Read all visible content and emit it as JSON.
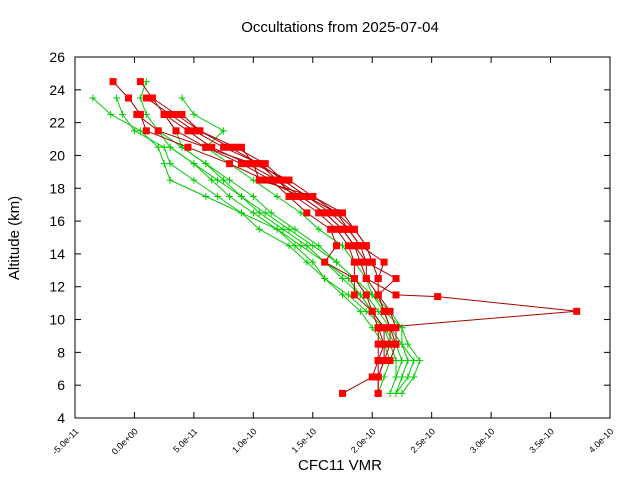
{
  "chart_data": {
    "type": "line",
    "title": "Occultations from 2025-07-04",
    "xlabel": "CFC11 VMR",
    "ylabel": "Altitude (km)",
    "xlim": [
      -5e-11,
      4e-10
    ],
    "ylim": [
      4,
      26
    ],
    "x_ticks": [
      "-5.0e-11",
      "0.0e+00",
      "5.0e-11",
      "1.0e-10",
      "1.5e-10",
      "2.0e-10",
      "2.5e-10",
      "3.0e-10",
      "3.5e-10",
      "4.0e-10"
    ],
    "x_tick_values": [
      -5e-11,
      0,
      5e-11,
      1e-10,
      1.5e-10,
      2e-10,
      2.5e-10,
      3e-10,
      3.5e-10,
      4e-10
    ],
    "y_ticks": [
      "4",
      "6",
      "8",
      "10",
      "12",
      "14",
      "16",
      "18",
      "20",
      "22",
      "24",
      "26"
    ],
    "y_tick_values": [
      4,
      6,
      8,
      10,
      12,
      14,
      16,
      18,
      20,
      22,
      24,
      26
    ],
    "grid": false,
    "colors": {
      "green": "#00cc00",
      "red": "#ff0000",
      "red_line": "#aa0000",
      "axis": "#000000"
    },
    "series": [
      {
        "marker": "plus",
        "color": "#00cc00",
        "points": [
          [
            -3.5e-11,
            23.5
          ],
          [
            -2e-11,
            22.5
          ],
          [
            5e-12,
            21.5
          ],
          [
            2e-11,
            20.5
          ],
          [
            2.5e-11,
            19.5
          ],
          [
            3e-11,
            18.5
          ],
          [
            6e-11,
            17.5
          ],
          [
            9e-11,
            16.5
          ],
          [
            1.2e-10,
            15.5
          ],
          [
            1.35e-10,
            14.5
          ],
          [
            1.5e-10,
            13.5
          ],
          [
            1.6e-10,
            12.5
          ],
          [
            1.8e-10,
            11.5
          ],
          [
            1.95e-10,
            10.5
          ],
          [
            2.1e-10,
            9.5
          ],
          [
            2.15e-10,
            8.5
          ],
          [
            2.2e-10,
            7.5
          ],
          [
            2.2e-10,
            6.5
          ],
          [
            2.15e-10,
            5.5
          ]
        ]
      },
      {
        "marker": "plus",
        "color": "#00cc00",
        "points": [
          [
            -1.5e-11,
            23.5
          ],
          [
            -1e-11,
            22.5
          ],
          [
            0,
            21.5
          ],
          [
            2.5e-11,
            20.5
          ],
          [
            3e-11,
            19.5
          ],
          [
            5e-11,
            18.5
          ],
          [
            7e-11,
            17.5
          ],
          [
            9e-11,
            16.5
          ],
          [
            1.05e-10,
            15.5
          ],
          [
            1.3e-10,
            14.5
          ],
          [
            1.45e-10,
            13.5
          ],
          [
            1.6e-10,
            12.5
          ],
          [
            1.75e-10,
            11.5
          ],
          [
            1.9e-10,
            10.5
          ],
          [
            2e-10,
            9.5
          ],
          [
            2.1e-10,
            8.5
          ],
          [
            2.15e-10,
            7.5
          ],
          [
            2.1e-10,
            6.5
          ],
          [
            2.05e-10,
            5.5
          ]
        ]
      },
      {
        "marker": "plus",
        "color": "#00cc00",
        "points": [
          [
            1e-11,
            24.5
          ],
          [
            5e-12,
            23.5
          ],
          [
            1e-11,
            22.5
          ],
          [
            2e-11,
            21.5
          ],
          [
            4e-11,
            20.5
          ],
          [
            6e-11,
            19.5
          ],
          [
            8e-11,
            18.5
          ],
          [
            1e-10,
            17.5
          ],
          [
            1.15e-10,
            16.5
          ],
          [
            1.35e-10,
            15.5
          ],
          [
            1.55e-10,
            14.5
          ],
          [
            1.7e-10,
            13.5
          ],
          [
            1.85e-10,
            12.5
          ],
          [
            1.95e-10,
            11.5
          ],
          [
            2.05e-10,
            10.5
          ],
          [
            2.15e-10,
            9.5
          ],
          [
            2.25e-10,
            8.5
          ],
          [
            2.35e-10,
            7.5
          ],
          [
            2.3e-10,
            6.5
          ],
          [
            2.2e-10,
            5.5
          ]
        ]
      },
      {
        "marker": "plus",
        "color": "#00cc00",
        "points": [
          [
            4e-11,
            23.5
          ],
          [
            5e-11,
            22.5
          ],
          [
            7.5e-11,
            21.5
          ],
          [
            6e-11,
            20.5
          ],
          [
            8e-11,
            19.5
          ],
          [
            1e-10,
            18.5
          ],
          [
            1.2e-10,
            17.5
          ],
          [
            1.4e-10,
            16.5
          ],
          [
            1.55e-10,
            15.5
          ],
          [
            1.75e-10,
            14.5
          ],
          [
            1.85e-10,
            13.5
          ],
          [
            1.95e-10,
            12.5
          ],
          [
            2e-10,
            11.5
          ],
          [
            2.1e-10,
            10.5
          ],
          [
            2.25e-10,
            9.5
          ],
          [
            2.25e-10,
            8.5
          ],
          [
            2.3e-10,
            7.5
          ],
          [
            2.25e-10,
            6.5
          ],
          [
            2.2e-10,
            5.5
          ]
        ]
      },
      {
        "marker": "plus",
        "color": "#00cc00",
        "points": [
          [
            2.5e-11,
            22.5
          ],
          [
            3.5e-11,
            21.5
          ],
          [
            4e-11,
            20.5
          ],
          [
            6e-11,
            19.5
          ],
          [
            7.5e-11,
            18.5
          ],
          [
            9e-11,
            17.5
          ],
          [
            1.1e-10,
            16.5
          ],
          [
            1.3e-10,
            15.5
          ],
          [
            1.5e-10,
            14.5
          ],
          [
            1.7e-10,
            13.5
          ],
          [
            1.85e-10,
            12.5
          ],
          [
            2e-10,
            11.5
          ],
          [
            2.15e-10,
            10.5
          ],
          [
            2.25e-10,
            9.5
          ],
          [
            2.3e-10,
            8.5
          ],
          [
            2.4e-10,
            7.5
          ],
          [
            2.35e-10,
            6.5
          ],
          [
            2.25e-10,
            5.5
          ]
        ]
      },
      {
        "marker": "plus",
        "color": "#00cc00",
        "points": [
          [
            2e-11,
            21.5
          ],
          [
            3e-11,
            20.5
          ],
          [
            5e-11,
            19.5
          ],
          [
            7e-11,
            18.5
          ],
          [
            9e-11,
            17.5
          ],
          [
            1.05e-10,
            16.5
          ],
          [
            1.25e-10,
            15.5
          ],
          [
            1.45e-10,
            14.5
          ],
          [
            1.6e-10,
            13.5
          ],
          [
            1.8e-10,
            12.5
          ],
          [
            1.9e-10,
            11.5
          ],
          [
            2e-10,
            10.5
          ],
          [
            2.1e-10,
            9.5
          ],
          [
            2.2e-10,
            8.5
          ],
          [
            2.25e-10,
            7.5
          ],
          [
            2.2e-10,
            6.5
          ]
        ]
      },
      {
        "marker": "plus",
        "color": "#00cc00",
        "points": [
          [
            3e-11,
            20.5
          ],
          [
            5e-11,
            19.5
          ],
          [
            6.5e-11,
            18.5
          ],
          [
            8e-11,
            17.5
          ],
          [
            1e-10,
            16.5
          ],
          [
            1.2e-10,
            15.5
          ],
          [
            1.4e-10,
            14.5
          ],
          [
            1.6e-10,
            13.5
          ],
          [
            1.75e-10,
            12.5
          ],
          [
            1.9e-10,
            11.5
          ],
          [
            2e-10,
            10.5
          ],
          [
            2.1e-10,
            9.5
          ],
          [
            2.15e-10,
            8.5
          ],
          [
            2.2e-10,
            7.5
          ]
        ]
      },
      {
        "marker": "square",
        "color": "#ff0000",
        "points": [
          [
            -1.8e-11,
            24.5
          ],
          [
            -5e-12,
            23.5
          ],
          [
            5e-12,
            22.5
          ],
          [
            1e-11,
            21.5
          ],
          [
            4.5e-11,
            20.5
          ],
          [
            8e-11,
            19.5
          ],
          [
            1.1e-10,
            18.5
          ],
          [
            1.4e-10,
            17.5
          ],
          [
            1.6e-10,
            16.5
          ],
          [
            1.75e-10,
            15.5
          ],
          [
            1.85e-10,
            14.5
          ],
          [
            1.9e-10,
            13.5
          ],
          [
            1.95e-10,
            12.5
          ],
          [
            2.2e-10,
            11.5
          ],
          [
            2.55e-10,
            11.4
          ],
          [
            3.72e-10,
            10.5
          ],
          [
            2.05e-10,
            9.5
          ],
          [
            2.1e-10,
            8.5
          ],
          [
            2.05e-10,
            7.5
          ],
          [
            2e-10,
            6.5
          ],
          [
            1.75e-10,
            5.5
          ]
        ]
      },
      {
        "marker": "square",
        "color": "#ff0000",
        "points": [
          [
            5e-12,
            24.5
          ],
          [
            1.5e-11,
            23.5
          ],
          [
            2.5e-11,
            22.5
          ],
          [
            3.5e-11,
            21.5
          ],
          [
            6e-11,
            20.5
          ],
          [
            1e-10,
            19.5
          ],
          [
            1.3e-10,
            18.5
          ],
          [
            1.5e-10,
            17.5
          ],
          [
            1.7e-10,
            16.5
          ],
          [
            1.85e-10,
            15.5
          ],
          [
            1.95e-10,
            14.5
          ],
          [
            2e-10,
            13.5
          ],
          [
            2.05e-10,
            12.5
          ],
          [
            2.05e-10,
            11.5
          ],
          [
            2.1e-10,
            10.5
          ],
          [
            2.15e-10,
            9.5
          ],
          [
            2.15e-10,
            8.5
          ],
          [
            2.1e-10,
            7.5
          ],
          [
            2.05e-10,
            6.5
          ],
          [
            2.05e-10,
            5.5
          ]
        ]
      },
      {
        "marker": "square",
        "color": "#ff0000",
        "points": [
          [
            1e-11,
            23.5
          ],
          [
            3e-11,
            22.5
          ],
          [
            5e-11,
            21.5
          ],
          [
            7.5e-11,
            20.5
          ],
          [
            1.05e-10,
            19.5
          ],
          [
            1.2e-10,
            18.5
          ],
          [
            1.35e-10,
            17.5
          ],
          [
            1.55e-10,
            16.5
          ],
          [
            1.7e-10,
            15.5
          ],
          [
            1.8e-10,
            14.5
          ],
          [
            1.85e-10,
            13.5
          ],
          [
            1.85e-10,
            12.5
          ],
          [
            1.85e-10,
            11.5
          ],
          [
            2e-10,
            10.5
          ],
          [
            2.05e-10,
            9.5
          ],
          [
            2.05e-10,
            8.5
          ],
          [
            2.05e-10,
            7.5
          ],
          [
            2.05e-10,
            6.5
          ],
          [
            2.05e-10,
            5.5
          ]
        ]
      },
      {
        "marker": "square",
        "color": "#ff0000",
        "points": [
          [
            1.5e-11,
            23.5
          ],
          [
            3.5e-11,
            22.5
          ],
          [
            5.5e-11,
            21.5
          ],
          [
            8.5e-11,
            20.5
          ],
          [
            1.1e-10,
            19.5
          ],
          [
            1.25e-10,
            18.5
          ],
          [
            1.45e-10,
            17.5
          ],
          [
            1.65e-10,
            16.5
          ],
          [
            1.8e-10,
            15.5
          ],
          [
            1.9e-10,
            14.5
          ],
          [
            1.95e-10,
            13.5
          ],
          [
            1.95e-10,
            12.5
          ],
          [
            2.05e-10,
            11.5
          ],
          [
            2.1e-10,
            10.5
          ],
          [
            2.15e-10,
            9.5
          ],
          [
            2.2e-10,
            8.5
          ],
          [
            2.15e-10,
            7.5
          ]
        ]
      },
      {
        "marker": "square",
        "color": "#ff0000",
        "points": [
          [
            2e-12,
            22.5
          ],
          [
            2e-11,
            21.5
          ],
          [
            6e-11,
            20.5
          ],
          [
            9e-11,
            19.5
          ],
          [
            1.15e-10,
            18.5
          ],
          [
            1.3e-10,
            17.5
          ],
          [
            1.45e-10,
            16.5
          ],
          [
            1.65e-10,
            15.5
          ],
          [
            1.7e-10,
            14.5
          ],
          [
            1.6e-10,
            13.5
          ],
          [
            1.85e-10,
            12.5
          ],
          [
            1.95e-10,
            11.5
          ],
          [
            2e-10,
            10.5
          ],
          [
            2.1e-10,
            9.5
          ],
          [
            2.1e-10,
            8.5
          ],
          [
            2.1e-10,
            7.5
          ],
          [
            2.05e-10,
            6.5
          ]
        ]
      },
      {
        "marker": "square",
        "color": "#ff0000",
        "points": [
          [
            2.5e-11,
            22.5
          ],
          [
            4.5e-11,
            21.5
          ],
          [
            6.5e-11,
            20.5
          ],
          [
            9.5e-11,
            19.5
          ],
          [
            1.2e-10,
            18.5
          ],
          [
            1.4e-10,
            17.5
          ],
          [
            1.6e-10,
            16.5
          ],
          [
            1.75e-10,
            15.5
          ],
          [
            1.85e-10,
            14.5
          ],
          [
            1.95e-10,
            13.5
          ],
          [
            2.2e-10,
            12.5
          ],
          [
            2.05e-10,
            11.5
          ],
          [
            2.15e-10,
            10.5
          ],
          [
            2.2e-10,
            9.5
          ],
          [
            2.2e-10,
            8.5
          ]
        ]
      },
      {
        "marker": "square",
        "color": "#ff0000",
        "points": [
          [
            4e-11,
            22.5
          ],
          [
            5.5e-11,
            21.5
          ],
          [
            8e-11,
            20.5
          ],
          [
            1.05e-10,
            19.5
          ],
          [
            1.25e-10,
            18.5
          ],
          [
            1.45e-10,
            17.5
          ],
          [
            1.7e-10,
            16.5
          ],
          [
            1.8e-10,
            15.5
          ],
          [
            1.9e-10,
            14.5
          ],
          [
            2.1e-10,
            13.5
          ],
          [
            2.05e-10,
            12.5
          ]
        ]
      },
      {
        "marker": "square",
        "color": "#ff0000",
        "points": [
          [
            9e-11,
            20.5
          ],
          [
            1e-10,
            19.5
          ],
          [
            1.05e-10,
            18.5
          ],
          [
            1.5e-10,
            17.5
          ],
          [
            1.75e-10,
            16.5
          ],
          [
            1.85e-10,
            15.5
          ],
          [
            1.95e-10,
            14.5
          ],
          [
            2e-10,
            13.5
          ]
        ]
      }
    ]
  }
}
